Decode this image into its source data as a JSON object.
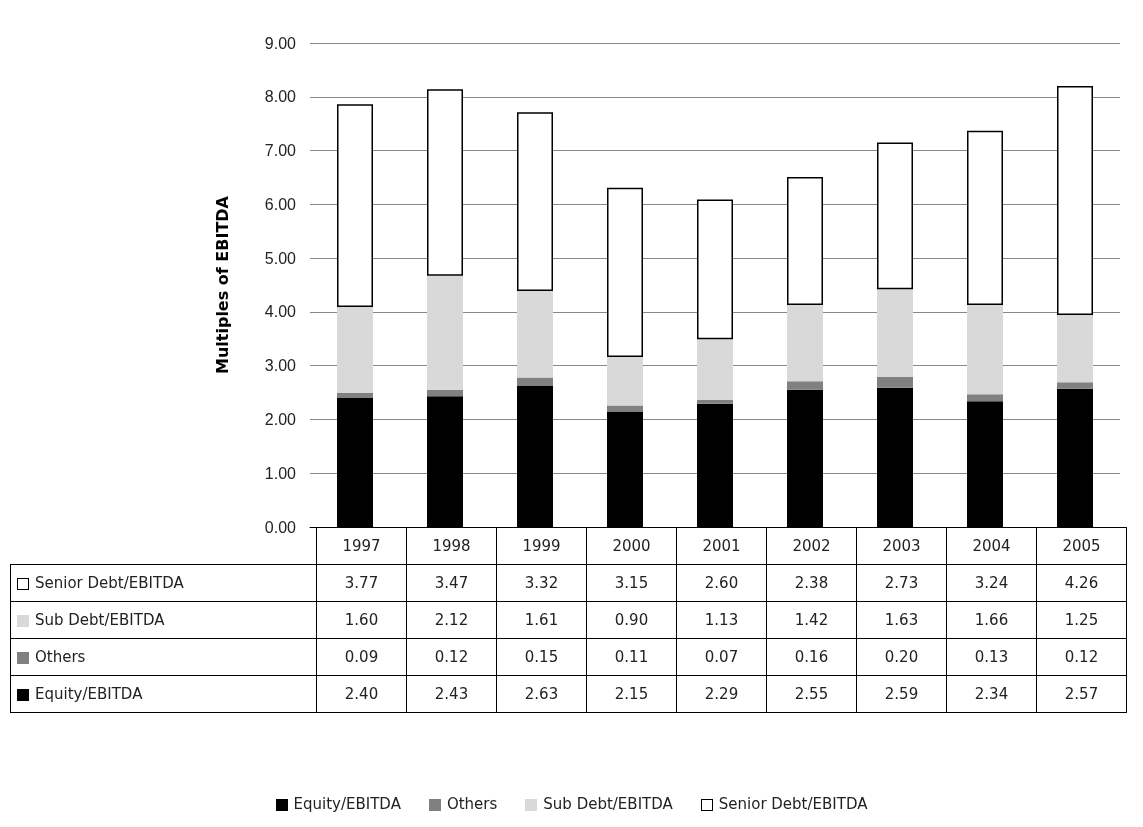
{
  "chart_data": {
    "type": "bar",
    "stacked": true,
    "ylabel": "Multiples of EBITDA",
    "categories": [
      "1997",
      "1998",
      "1999",
      "2000",
      "2001",
      "2002",
      "2003",
      "2004",
      "2005"
    ],
    "series": [
      {
        "name": "Equity/EBITDA",
        "color": "#000000",
        "values": [
          2.4,
          2.43,
          2.63,
          2.15,
          2.29,
          2.55,
          2.59,
          2.34,
          2.57
        ],
        "value_labels": [
          "2.40",
          "2.43",
          "2.63",
          "2.15",
          "2.29",
          "2.55",
          "2.59",
          "2.34",
          "2.57"
        ]
      },
      {
        "name": "Others",
        "color": "#808080",
        "values": [
          0.09,
          0.12,
          0.15,
          0.11,
          0.07,
          0.16,
          0.2,
          0.13,
          0.12
        ],
        "value_labels": [
          "0.09",
          "0.12",
          "0.15",
          "0.11",
          "0.07",
          "0.16",
          "0.20",
          "0.13",
          "0.12"
        ]
      },
      {
        "name": "Sub Debt/EBITDA",
        "color": "#d9d9d9",
        "values": [
          1.6,
          2.12,
          1.61,
          0.9,
          1.13,
          1.42,
          1.63,
          1.66,
          1.25
        ],
        "value_labels": [
          "1.60",
          "2.12",
          "1.61",
          "0.90",
          "1.13",
          "1.42",
          "1.63",
          "1.66",
          "1.25"
        ]
      },
      {
        "name": "Senior Debt/EBITDA",
        "color": "#ffffff",
        "values": [
          3.77,
          3.47,
          3.32,
          3.15,
          2.6,
          2.38,
          2.73,
          3.24,
          4.26
        ],
        "value_labels": [
          "3.77",
          "3.47",
          "3.32",
          "3.15",
          "2.60",
          "2.38",
          "2.73",
          "3.24",
          "4.26"
        ]
      }
    ],
    "ylim": [
      0,
      9
    ],
    "yticks": [
      {
        "value": 0,
        "label": "0.00"
      },
      {
        "value": 1,
        "label": "1.00"
      },
      {
        "value": 2,
        "label": "2.00"
      },
      {
        "value": 3,
        "label": "3.00"
      },
      {
        "value": 4,
        "label": "4.00"
      },
      {
        "value": 5,
        "label": "5.00"
      },
      {
        "value": 6,
        "label": "6.00"
      },
      {
        "value": 7,
        "label": "7.00"
      },
      {
        "value": 8,
        "label": "8.00"
      },
      {
        "value": 9,
        "label": "9.00"
      }
    ],
    "grid": "y",
    "legend": "bottom"
  }
}
